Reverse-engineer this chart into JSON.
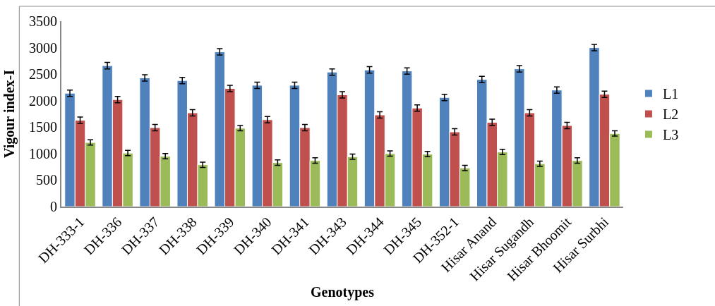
{
  "chart_data": {
    "type": "bar",
    "xlabel": "Genotypes",
    "ylabel": "Vigour index-I",
    "categories": [
      "DH-333-1",
      "DH-336",
      "DH-337",
      "DH-338",
      "DH-339",
      "DH-340",
      "DH-341",
      "DH-343",
      "DH-344",
      "DH-345",
      "DH-352-1",
      "Hisar Anand",
      "Hisar Sugandh",
      "Hisar Bhoomit",
      "Hisar Surbhi"
    ],
    "series": [
      {
        "name": "L1",
        "color": "#4f81bd",
        "values": [
          2140,
          2660,
          2430,
          2380,
          2920,
          2290,
          2290,
          2540,
          2580,
          2560,
          2060,
          2400,
          2600,
          2200,
          3000
        ],
        "errors": [
          60,
          60,
          60,
          60,
          60,
          60,
          60,
          60,
          60,
          60,
          60,
          60,
          60,
          60,
          60
        ]
      },
      {
        "name": "L2",
        "color": "#c0504d",
        "values": [
          1630,
          2020,
          1490,
          1770,
          2230,
          1640,
          1490,
          2110,
          1730,
          1860,
          1410,
          1590,
          1770,
          1530,
          2120
        ],
        "errors": [
          60,
          60,
          60,
          60,
          60,
          60,
          60,
          60,
          60,
          60,
          60,
          60,
          60,
          60,
          60
        ]
      },
      {
        "name": "L3",
        "color": "#9bbb59",
        "values": [
          1210,
          1010,
          950,
          790,
          1480,
          830,
          870,
          940,
          1000,
          990,
          730,
          1030,
          810,
          870,
          1380
        ],
        "errors": [
          50,
          50,
          50,
          50,
          50,
          50,
          50,
          50,
          50,
          50,
          50,
          50,
          50,
          50,
          50
        ]
      }
    ],
    "ylim": [
      0,
      3500
    ],
    "yticks": [
      0,
      500,
      1000,
      1500,
      2000,
      2500,
      3000,
      3500
    ],
    "legend": "right"
  }
}
